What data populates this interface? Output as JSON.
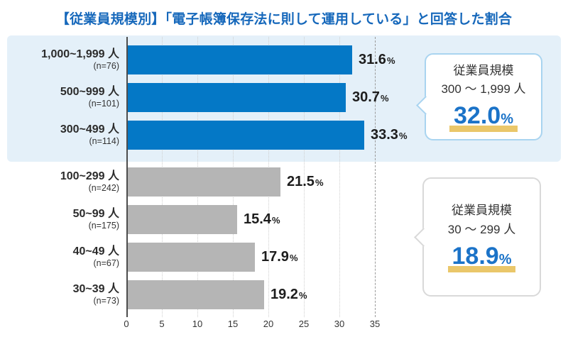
{
  "title": "【従業員規模別】「電子帳簿保存法に則して運用している」と回答した割合",
  "chart_data": {
    "type": "bar",
    "orientation": "horizontal",
    "title": "【従業員規模別】「電子帳簿保存法に則して運用している」と回答した割合",
    "categories": [
      "1,000~1,999 人",
      "500~999 人",
      "300~499 人",
      "100~299 人",
      "50~99 人",
      "40~49 人",
      "30~39 人"
    ],
    "n_labels": [
      "(n=76)",
      "(n=101)",
      "(n=114)",
      "(n=242)",
      "(n=175)",
      "(n=67)",
      "(n=73)"
    ],
    "values": [
      31.6,
      30.7,
      33.3,
      21.5,
      15.4,
      17.9,
      19.2
    ],
    "value_labels": [
      "31.6",
      "30.7",
      "33.3",
      "21.5",
      "15.4",
      "17.9",
      "19.2"
    ],
    "unit": "%",
    "highlight_count": 3,
    "xlim": [
      0,
      35
    ],
    "x_ticks": [
      0,
      5,
      10,
      15,
      20,
      25,
      30,
      35
    ],
    "gridlines": "dotted-vertical",
    "legend_position": "none"
  },
  "callouts": [
    {
      "line1": "従業員規模",
      "line2": "300 〜 1,999 人",
      "value": "32.0",
      "unit": "%"
    },
    {
      "line1": "従業員規模",
      "line2": "30 〜 299 人",
      "value": "18.9",
      "unit": "%"
    }
  ],
  "colors": {
    "title_blue": "#1668bb",
    "bar_blue": "#0478c6",
    "bar_gray": "#b5b5b5",
    "panel_blue": "#e4f0f9",
    "value_blue": "#1b73c8",
    "underline_yellow": "#eac76a",
    "callout1_border": "#a9d4f0",
    "callout2_border": "#d9d9d9",
    "gridline": "#cfcfcf",
    "gridline_strong": "#9a9a9a",
    "axis": "#4d4d4d"
  }
}
